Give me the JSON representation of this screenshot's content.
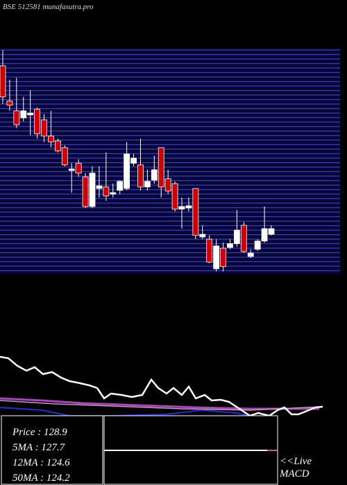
{
  "chart_data": {
    "type": "candlestick",
    "title": "BSE 512581 munafasutra.pro",
    "ylim": [
      118,
      178
    ],
    "up_color": "#ffffff",
    "down_color": "#cc0000",
    "open": [
      173.4,
      164.0,
      161.4,
      159.5,
      160.3,
      161.8,
      159.0,
      154.7,
      153.4,
      151.6,
      145.5,
      147.4,
      143.8,
      135.9,
      140.7,
      141.1,
      139.2,
      140.2,
      140.7,
      147.4,
      147.0,
      141.1,
      142.9,
      151.6,
      143.3,
      142.0,
      135.2,
      135.5,
      140.7,
      127.8,
      127.2,
      119.3,
      124.8,
      125.0,
      126.0,
      130.9,
      122.6,
      124.5,
      126.7,
      128.5
    ],
    "high": [
      177.6,
      169.7,
      170.2,
      165.1,
      166.9,
      162.3,
      160.5,
      161.4,
      154.0,
      152.2,
      147.5,
      148.5,
      144.8,
      146.6,
      146.6,
      150.3,
      142.0,
      142.9,
      153.1,
      149.9,
      154.0,
      145.7,
      149.4,
      151.6,
      145.7,
      142.6,
      138.3,
      138.3,
      140.7,
      130.9,
      128.2,
      127.2,
      126.3,
      127.2,
      135.0,
      131.8,
      124.5,
      127.2,
      135.9,
      130.9
    ],
    "low": [
      163.2,
      161.4,
      156.8,
      158.6,
      154.9,
      154.0,
      153.1,
      151.6,
      150.3,
      146.6,
      139.6,
      143.8,
      135.5,
      135.5,
      138.3,
      137.4,
      138.3,
      139.2,
      140.2,
      146.6,
      140.2,
      140.2,
      142.0,
      138.3,
      139.2,
      134.6,
      130.0,
      134.6,
      127.2,
      127.2,
      120.8,
      118.6,
      118.6,
      124.5,
      125.2,
      123.5,
      122.2,
      124.1,
      126.3,
      128.2
    ],
    "close": [
      165.1,
      162.9,
      157.7,
      161.4,
      160.8,
      155.3,
      154.7,
      153.1,
      150.7,
      147.0,
      145.9,
      144.8,
      135.9,
      144.8,
      141.4,
      138.7,
      139.6,
      142.6,
      149.9,
      148.8,
      141.1,
      142.6,
      145.7,
      141.1,
      140.0,
      135.2,
      135.9,
      136.1,
      128.2,
      128.5,
      121.1,
      125.4,
      119.9,
      126.0,
      129.6,
      123.9,
      123.5,
      126.7,
      130.0,
      130.0
    ]
  },
  "panel": {
    "price": "Price   : 128.9",
    "ma5": "5MA : 127.7",
    "ma12": "12MA : 124.6",
    "ma50": "50MA : 124.2",
    "live": "<<Live",
    "macd": "MACD"
  }
}
